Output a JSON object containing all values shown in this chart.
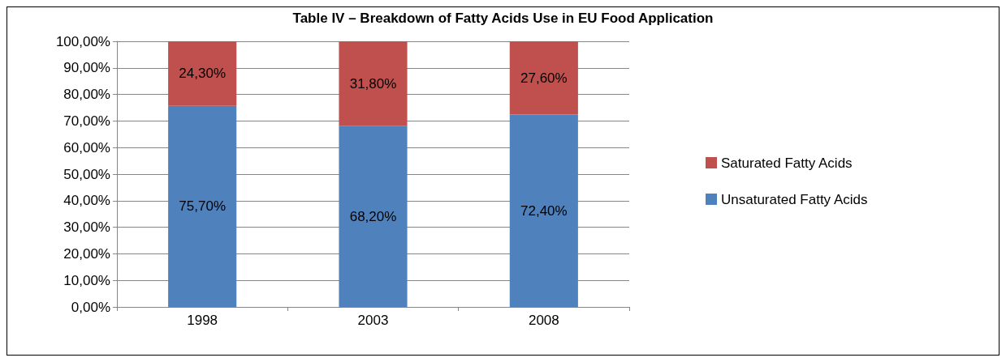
{
  "chart_data": {
    "type": "bar",
    "title": "Table IV – Breakdown of Fatty Acids Use in EU Food Application",
    "categories": [
      "1998",
      "2003",
      "2008"
    ],
    "stacked": true,
    "series": [
      {
        "name": "Unsaturated Fatty Acids",
        "color": "#4f81bd",
        "values": [
          75.7,
          68.2,
          72.4
        ],
        "value_labels": [
          "75,70%",
          "68,20%",
          "72,40%"
        ]
      },
      {
        "name": "Saturated Fatty Acids",
        "color": "#c0504d",
        "values": [
          24.3,
          31.8,
          27.6
        ],
        "value_labels": [
          "24,30%",
          "31,80%",
          "27,60%"
        ]
      }
    ],
    "ylim": [
      0,
      100
    ],
    "yticks": [
      {
        "value": 0,
        "label": "0,00%"
      },
      {
        "value": 10,
        "label": "10,00%"
      },
      {
        "value": 20,
        "label": "20,00%"
      },
      {
        "value": 30,
        "label": "30,00%"
      },
      {
        "value": 40,
        "label": "40,00%"
      },
      {
        "value": 50,
        "label": "50,00%"
      },
      {
        "value": 60,
        "label": "60,00%"
      },
      {
        "value": 70,
        "label": "70,00%"
      },
      {
        "value": 80,
        "label": "80,00%"
      },
      {
        "value": 90,
        "label": "90,00%"
      },
      {
        "value": 100,
        "label": "100,00%"
      }
    ],
    "grid": "y",
    "legend": "right"
  }
}
